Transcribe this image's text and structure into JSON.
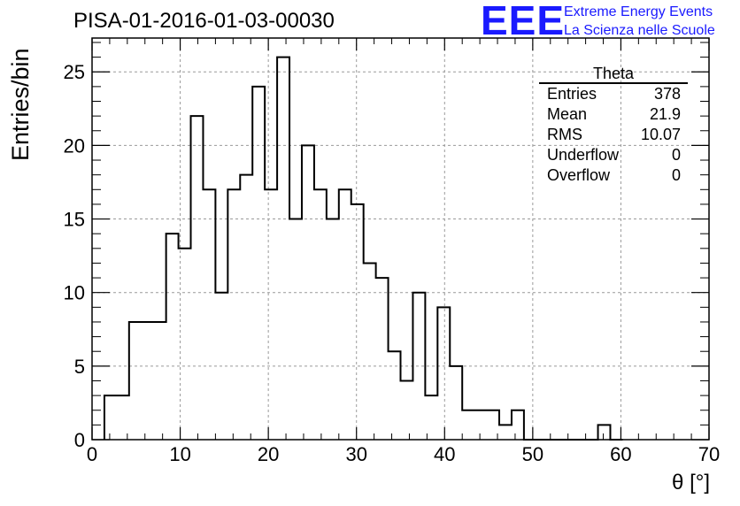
{
  "header": {
    "title": "PISA-01-2016-01-03-00030",
    "logo_text": "EEE",
    "logo_line1": "Extreme Energy Events",
    "logo_line2": "La Scienza nelle Scuole"
  },
  "stats": {
    "title": "Theta",
    "rows": [
      {
        "label": "Entries",
        "value": "378"
      },
      {
        "label": "Mean",
        "value": "21.9"
      },
      {
        "label": "RMS",
        "value": "10.07"
      },
      {
        "label": "Underflow",
        "value": "0"
      },
      {
        "label": "Overflow",
        "value": "0"
      }
    ]
  },
  "chart_data": {
    "type": "bar",
    "title": "PISA-01-2016-01-03-00030",
    "xlabel": "θ [°]",
    "ylabel": "Entries/bin",
    "xlim": [
      0,
      70
    ],
    "ylim": [
      0,
      27.3
    ],
    "bin_width": 1.4,
    "bin_lo_edges": [
      1.4,
      2.8,
      4.2,
      5.6,
      7.0,
      8.4,
      9.8,
      11.2,
      12.6,
      14.0,
      15.4,
      16.8,
      18.2,
      19.6,
      21.0,
      22.4,
      23.8,
      25.2,
      26.6,
      28.0,
      29.4,
      30.8,
      32.2,
      33.6,
      35.0,
      36.4,
      37.8,
      39.2,
      40.6,
      42.0,
      43.4,
      44.8,
      46.2,
      47.6,
      49.0,
      50.4,
      51.8,
      53.2,
      54.6,
      56.0,
      57.4,
      58.8
    ],
    "values": [
      3,
      3,
      8,
      8,
      8,
      14,
      13,
      22,
      17,
      10,
      17,
      18,
      24,
      17,
      26,
      15,
      20,
      17,
      15,
      17,
      16,
      12,
      11,
      6,
      4,
      10,
      3,
      9,
      5,
      2,
      2,
      2,
      1,
      2,
      0,
      0,
      0,
      0,
      0,
      0,
      1,
      0
    ],
    "x_ticks": [
      0,
      10,
      20,
      30,
      40,
      50,
      60,
      70
    ],
    "y_ticks": [
      0,
      5,
      10,
      15,
      20,
      25
    ],
    "grid": true,
    "legend": "top-right"
  }
}
